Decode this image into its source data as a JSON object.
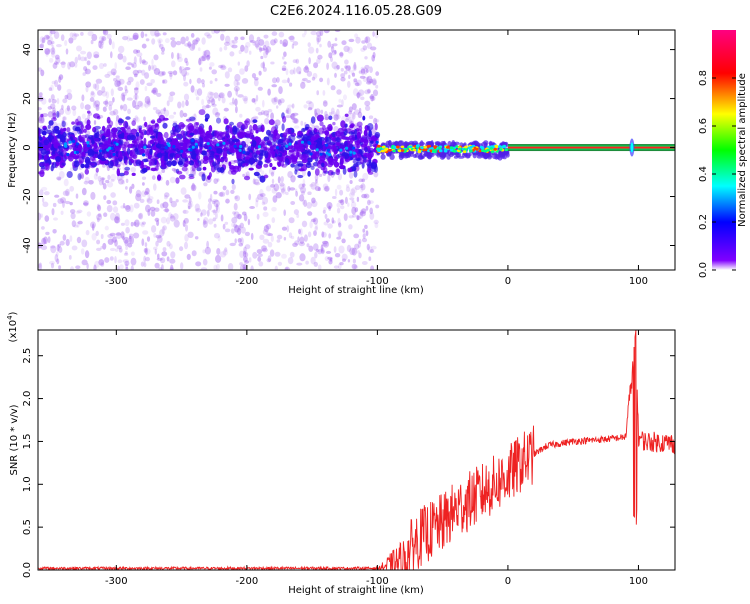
{
  "title": "C2E6.2024.116.05.28.G09",
  "chart_data": [
    {
      "type": "heatmap",
      "xlabel": "Height of straight line (km)",
      "ylabel": "Frequency (Hz)",
      "xlim": [
        -360,
        128
      ],
      "ylim": [
        -50,
        48
      ],
      "x_ticks": [
        -300,
        -200,
        -100,
        0,
        100
      ],
      "y_ticks": [
        -40,
        -20,
        0,
        20,
        40
      ],
      "colorbar": {
        "label": "Normalized spectral amplitude",
        "range": [
          0,
          1
        ],
        "ticks": [
          0.0,
          0.2,
          0.4,
          0.6,
          0.8
        ],
        "colormap": [
          "#ffffff",
          "#8000ff",
          "#0000ff",
          "#00ffff",
          "#00ff00",
          "#ffff00",
          "#ff0000",
          "#ff0080"
        ]
      },
      "features": [
        {
          "name": "noise_region",
          "x_range": [
            -360,
            -100
          ],
          "freq_range": [
            -50,
            48
          ]
        },
        {
          "name": "noise_core",
          "x_range": [
            -360,
            -100
          ],
          "freq_range": [
            -15,
            15
          ]
        },
        {
          "name": "emerging_signal",
          "x_range": [
            -100,
            0
          ],
          "freq_center": 0
        },
        {
          "name": "steady_signal",
          "x_range": [
            0,
            128
          ],
          "freq_center": 0
        },
        {
          "name": "spike",
          "x": 95
        }
      ]
    },
    {
      "type": "line",
      "xlabel": "Height of straight line (km)",
      "ylabel": "SNR (10 * v/v)",
      "y_multiplier_label": "(x10",
      "y_multiplier_exp": "4",
      "xlim": [
        -360,
        128
      ],
      "ylim": [
        0,
        2.8
      ],
      "x_ticks": [
        -300,
        -200,
        -100,
        0,
        100
      ],
      "y_ticks": [
        0.0,
        0.5,
        1.0,
        1.5,
        2.0,
        2.5
      ],
      "line_color": "#ee2222",
      "series": [
        {
          "x": [
            -360,
            -300,
            -200,
            -100,
            -80,
            -70,
            -60,
            -50,
            -40,
            -30,
            -20,
            -10,
            0,
            10,
            20,
            30,
            50,
            70,
            90,
            95,
            98,
            100,
            105,
            128
          ],
          "values": [
            0.02,
            0.02,
            0.02,
            0.02,
            0.1,
            0.35,
            0.45,
            0.55,
            0.7,
            0.8,
            0.9,
            1.0,
            1.1,
            1.25,
            1.35,
            1.45,
            1.5,
            1.52,
            1.55,
            2.25,
            2.8,
            1.55,
            1.5,
            1.48
          ]
        }
      ]
    }
  ]
}
